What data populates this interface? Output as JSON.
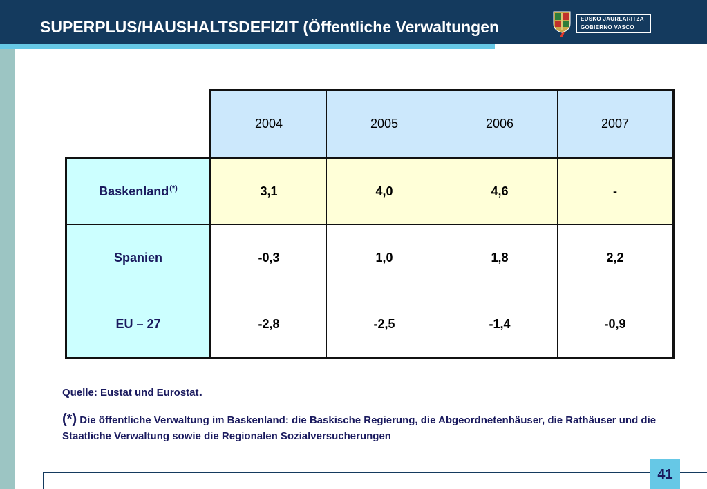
{
  "title": "SUPERPLUS/HAUSHALTSDEFIZIT (Öffentliche Verwaltungen",
  "title_close": ")",
  "logo": {
    "line1": "EUSKO JAURLARITZA",
    "line2": "GOBIERNO VASCO",
    "seal_icon": "basque-government-seal-icon"
  },
  "table": {
    "years": [
      "2004",
      "2005",
      "2006",
      "2007"
    ],
    "rows": [
      {
        "label": "Baskenland",
        "note": "(*)",
        "values": [
          "3,1",
          "4,0",
          "4,6",
          "-"
        ]
      },
      {
        "label": "Spanien",
        "values": [
          "-0,3",
          "1,0",
          "1,8",
          "2,2"
        ]
      },
      {
        "label": "EU – 27",
        "values": [
          "-2,8",
          "-2,5",
          "-1,4",
          "-0,9"
        ]
      }
    ]
  },
  "source": {
    "text": "Quelle: Eustat und Eurostat",
    "dot": "."
  },
  "footnote": {
    "mark": "(*)",
    "text": "Die öffentliche Verwaltung im Baskenland: die Baskische Regierung, die Abgeordnetenhäuser, die Rathäuser und die Staatliche Verwaltung sowie die Regionalen Sozialversucherungen"
  },
  "page_number": "41",
  "colors": {
    "header": "#143a5e",
    "accent": "#66c8e6",
    "side_bar": "#9cc5c3",
    "year_header_bg": "#cce8fc",
    "row_header_bg": "#ccffff",
    "highlight_row_bg": "#ffffd8",
    "title_paren": "#e23a2a"
  }
}
